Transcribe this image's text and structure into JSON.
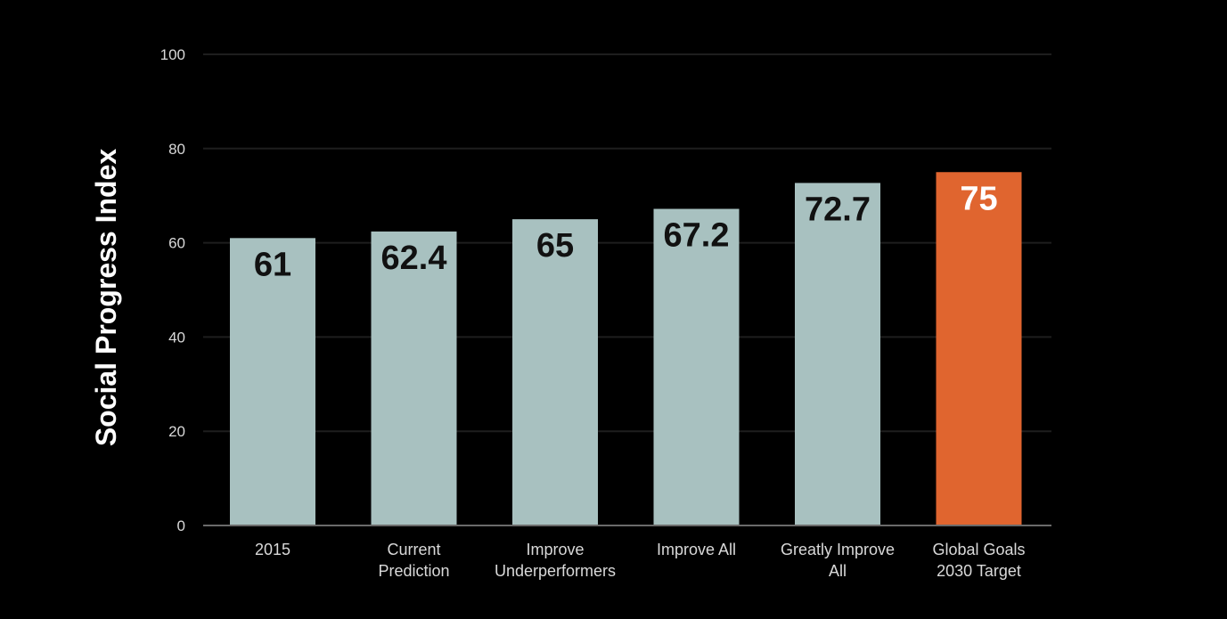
{
  "chart_data": {
    "type": "bar",
    "ylabel": "Social Progress Index",
    "xlabel": "",
    "title": "",
    "ylim": [
      0,
      100
    ],
    "yticks": [
      0,
      20,
      40,
      60,
      80,
      100
    ],
    "grid": true,
    "categories": [
      [
        "2015"
      ],
      [
        "Current",
        "Prediction"
      ],
      [
        "Improve",
        "Underperformers"
      ],
      [
        "Improve All"
      ],
      [
        "Greatly Improve",
        "All"
      ],
      [
        "Global Goals",
        "2030 Target"
      ]
    ],
    "values": [
      61,
      62.4,
      65,
      67.2,
      72.7,
      75
    ],
    "value_labels": [
      "61",
      "62.4",
      "65",
      "67.2",
      "72.7",
      "75"
    ],
    "colors": {
      "default_bar": "#a8c1c0",
      "highlight_bar": "#e0652f",
      "default_label": "#111111",
      "highlight_label": "#ffffff"
    },
    "highlight_index": 5
  }
}
